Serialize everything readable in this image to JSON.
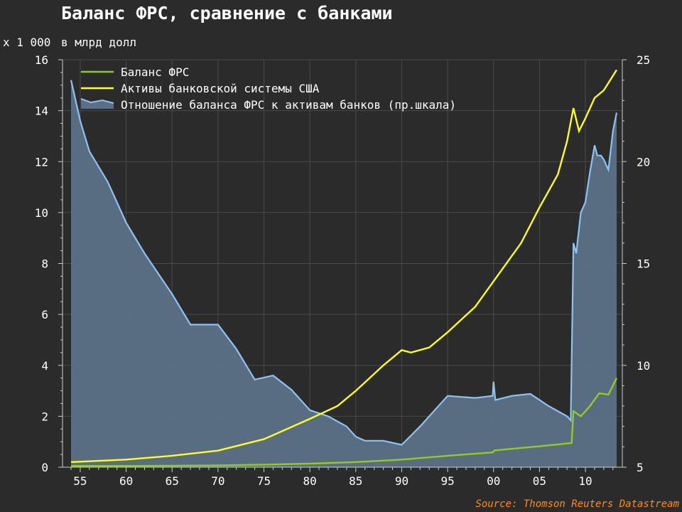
{
  "title": "Баланс ФРС, сравнение с банками",
  "units": {
    "left_multiplier": "x 1 000",
    "left_unit": "в млрд долл"
  },
  "source": "Source: Thomson Reuters Datastream",
  "colors": {
    "background": "#2b2b2b",
    "fed": "#8fce1f",
    "banks": "#ffff1f",
    "ratio_line": "#8ec2f2",
    "ratio_fill": "#5b7087",
    "grid": "#4a4a4a"
  },
  "chart_data": {
    "type": "line",
    "title": "Баланс ФРС, сравнение с банками",
    "x_ticks": [
      "55",
      "60",
      "65",
      "70",
      "75",
      "80",
      "85",
      "90",
      "95",
      "00",
      "05",
      "10"
    ],
    "y_left": {
      "label": "x 1 000 в млрд долл",
      "lim": [
        0,
        16
      ],
      "ticks": [
        "0",
        "2",
        "4",
        "6",
        "8",
        "10",
        "12",
        "14",
        "16"
      ]
    },
    "y_right": {
      "lim": [
        5,
        25
      ],
      "ticks": [
        "5",
        "10",
        "15",
        "20",
        "25"
      ]
    },
    "legend_position": "top-left",
    "series": [
      {
        "name": "Баланс ФРС",
        "axis": "left",
        "type": "line",
        "x": [
          1954,
          1960,
          1965,
          1970,
          1975,
          1980,
          1985,
          1990,
          1995,
          1999.9,
          2000.1,
          2005,
          2008.5,
          2008.7,
          2009.5,
          2010.5,
          2011.5,
          2012.5,
          2013.4
        ],
        "y": [
          0.05,
          0.05,
          0.06,
          0.07,
          0.1,
          0.14,
          0.2,
          0.3,
          0.45,
          0.58,
          0.66,
          0.82,
          0.95,
          2.2,
          2.0,
          2.4,
          2.9,
          2.85,
          3.5
        ]
      },
      {
        "name": "Активы банковской системы США",
        "axis": "left",
        "type": "line",
        "x": [
          1954,
          1960,
          1965,
          1970,
          1975,
          1980,
          1983,
          1985,
          1988,
          1990,
          1991,
          1993,
          1995,
          1998,
          2000,
          2003,
          2005,
          2007,
          2008,
          2008.7,
          2009.3,
          2010,
          2011,
          2012,
          2013.4
        ],
        "y": [
          0.2,
          0.3,
          0.45,
          0.65,
          1.1,
          1.9,
          2.4,
          3.0,
          4.0,
          4.6,
          4.5,
          4.7,
          5.3,
          6.3,
          7.3,
          8.8,
          10.2,
          11.5,
          12.8,
          14.1,
          13.2,
          13.7,
          14.5,
          14.8,
          15.6
        ]
      },
      {
        "name": "Отношение баланса ФРС к активам банков (пр.шкала)",
        "axis": "right",
        "type": "area",
        "x": [
          1954,
          1955,
          1956,
          1958,
          1960,
          1962,
          1965,
          1967,
          1970,
          1972,
          1974,
          1976,
          1978,
          1980,
          1982,
          1984,
          1985,
          1986,
          1988,
          1990,
          1992,
          1993,
          1995,
          1998,
          1999.9,
          2000,
          2000.2,
          2002,
          2004,
          2006,
          2008,
          2008.4,
          2008.7,
          2009,
          2009.5,
          2010,
          2010.5,
          2011,
          2011.3,
          2011.7,
          2012,
          2012.5,
          2013,
          2013.4
        ],
        "y": [
          24,
          22,
          20.5,
          19,
          17,
          15.5,
          13.5,
          12,
          12,
          10.8,
          9.3,
          9.5,
          8.8,
          7.8,
          7.5,
          7.0,
          6.5,
          6.3,
          6.3,
          6.1,
          7.0,
          7.5,
          8.5,
          8.4,
          8.5,
          9.2,
          8.3,
          8.5,
          8.6,
          8.0,
          7.5,
          7.3,
          16,
          15.5,
          17.5,
          18,
          19.5,
          20.8,
          20.3,
          20.3,
          20.1,
          19.6,
          21.5,
          22.4
        ]
      }
    ]
  }
}
